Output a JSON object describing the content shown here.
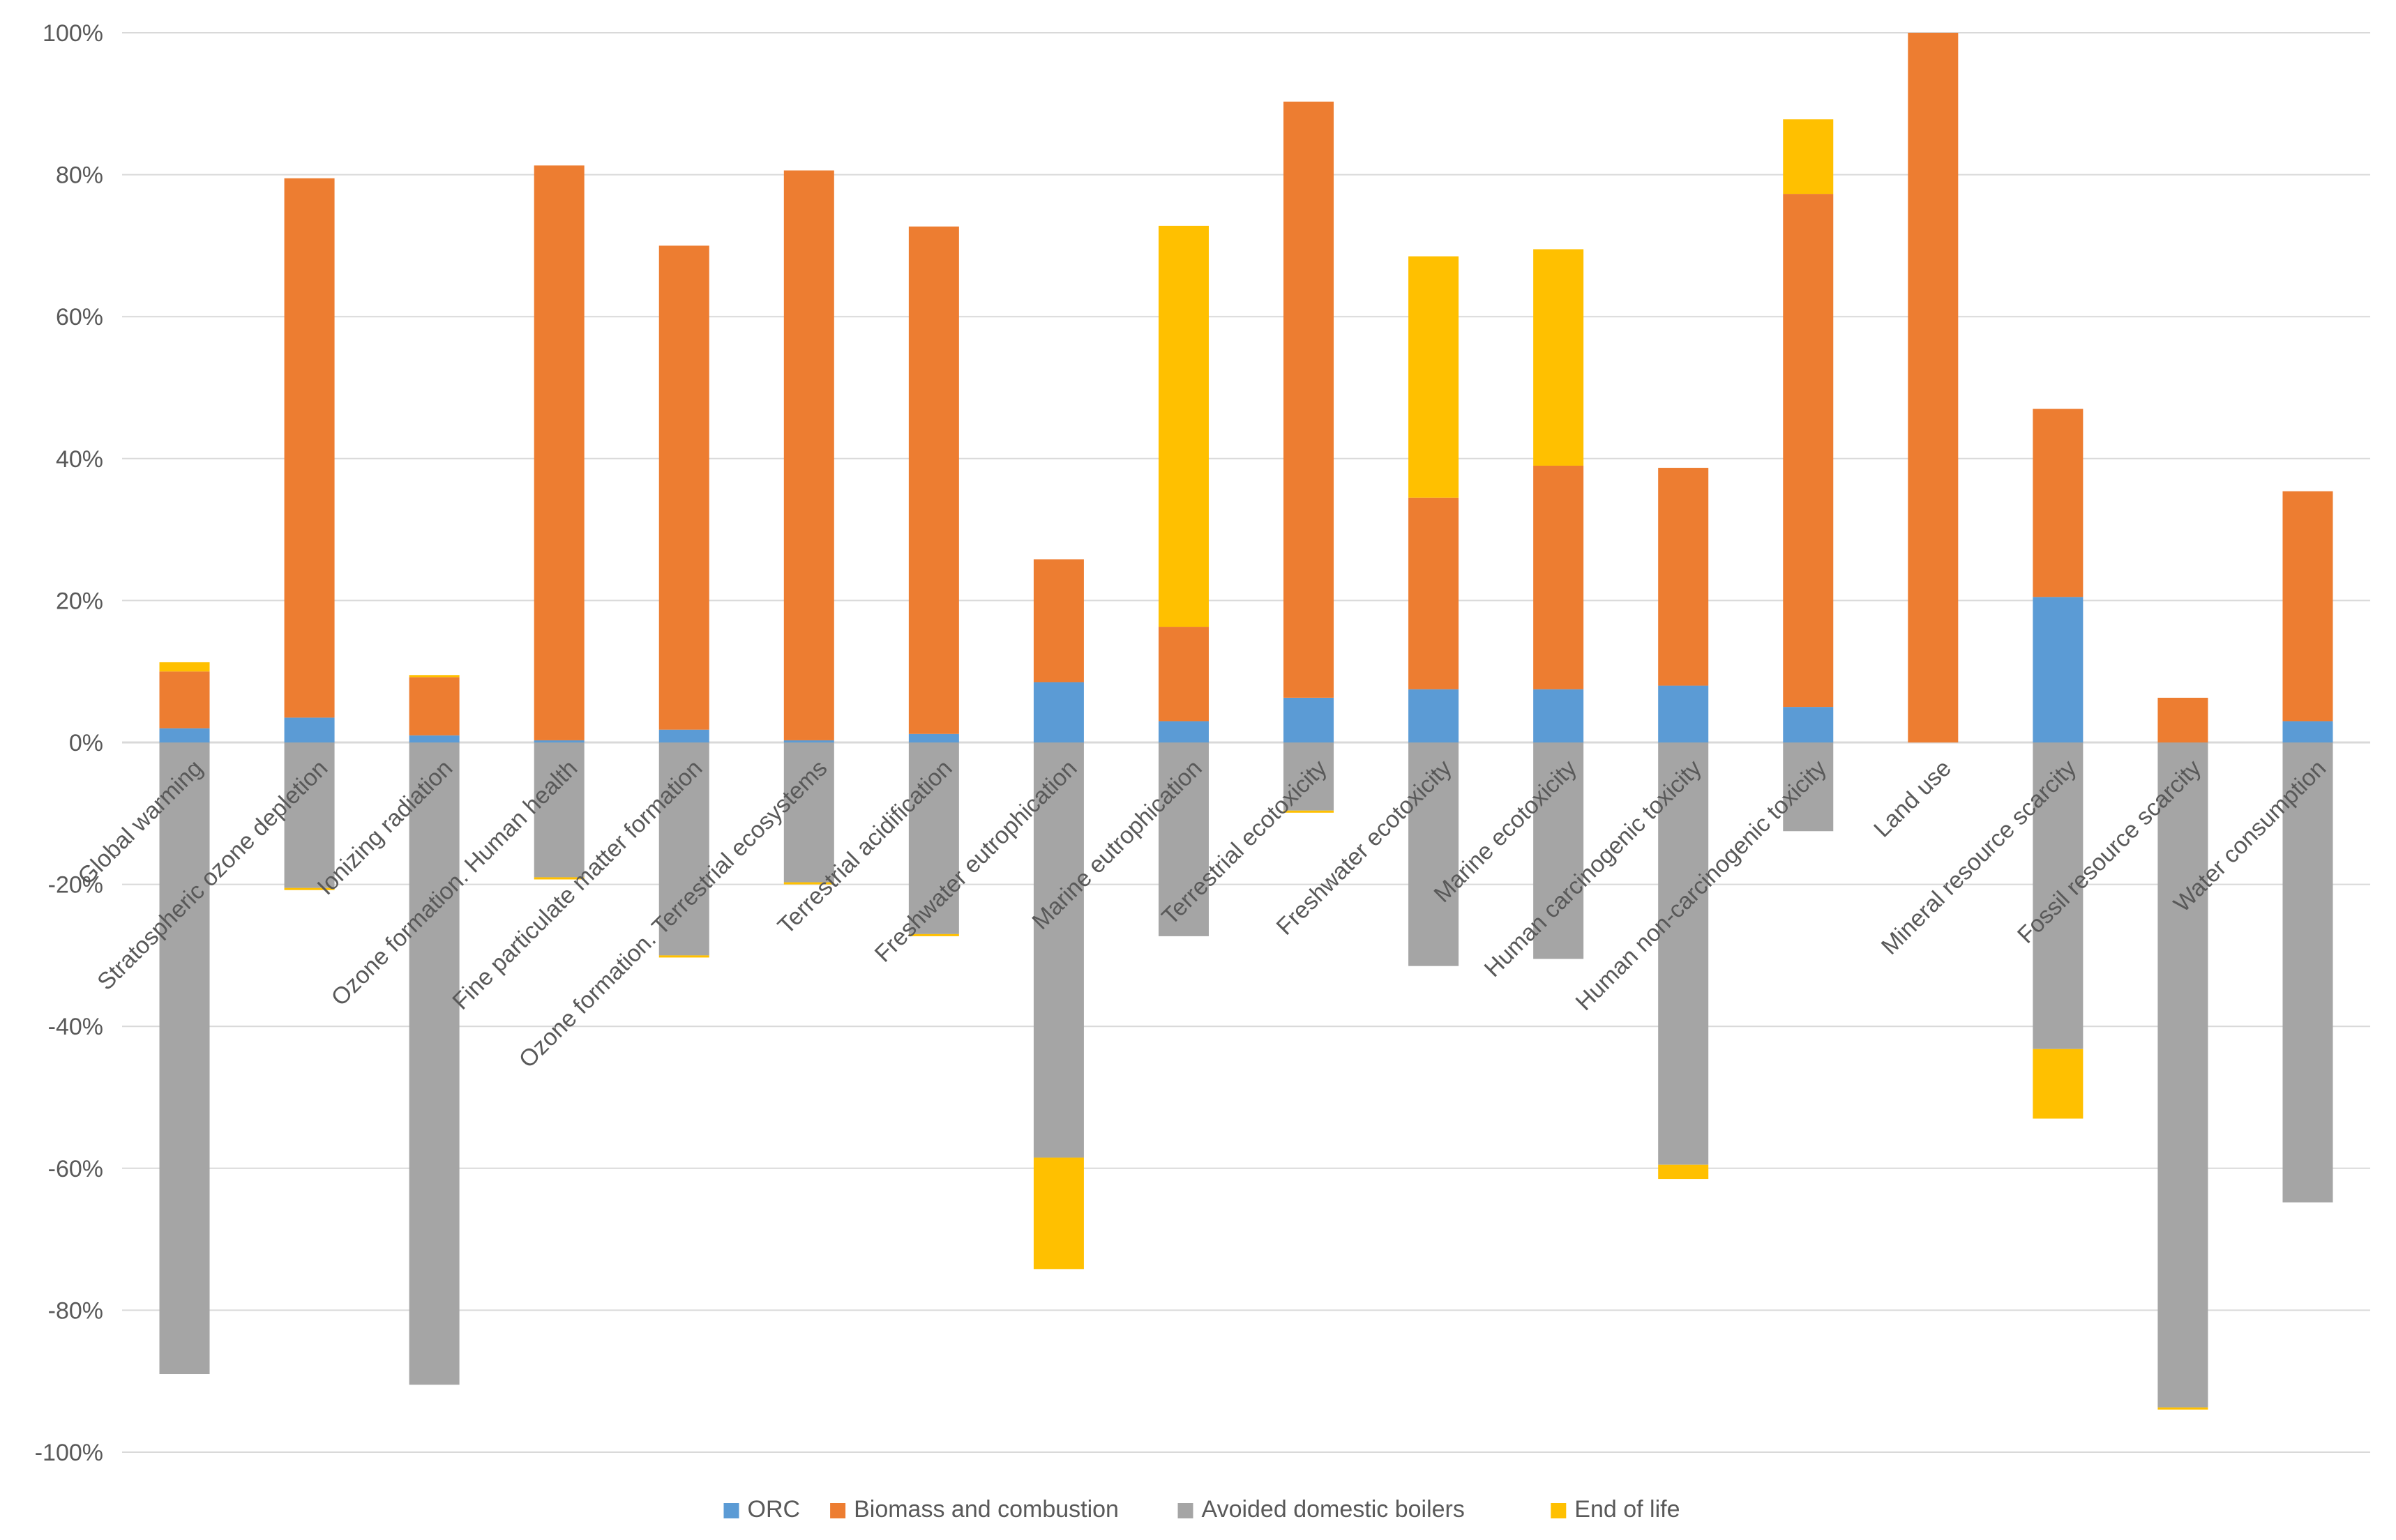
{
  "chart_data": {
    "type": "bar",
    "stacked": true,
    "title": "",
    "xlabel": "",
    "ylabel": "",
    "ylim": [
      -100,
      100
    ],
    "yticks": [
      100,
      80,
      60,
      40,
      20,
      0,
      -20,
      -40,
      -60,
      -80,
      -100
    ],
    "ytick_labels": [
      "100%",
      "80%",
      "60%",
      "40%",
      "20%",
      "0%",
      "-20%",
      "-40%",
      "-60%",
      "-80%",
      "-100%"
    ],
    "grid": true,
    "legend_position": "bottom",
    "categories": [
      "Global warming",
      "Stratospheric ozone depletion",
      "Ionizing radiation",
      "Ozone formation. Human health",
      "Fine particulate matter formation",
      "Ozone formation. Terrestrial ecosystems",
      "Terrestrial acidification",
      "Freshwater eutrophication",
      "Marine eutrophication",
      "Terrestrial ecotoxicity",
      "Freshwater ecotoxicity",
      "Marine ecotoxicity",
      "Human carcinogenic toxicity",
      "Human non-carcinogenic toxicity",
      "Land use",
      "Mineral resource scarcity",
      "Fossil resource scarcity",
      "Water consumption"
    ],
    "series": [
      {
        "name": "ORC",
        "color": "#5b9bd5",
        "values": [
          2,
          3.5,
          1,
          0.3,
          1.8,
          0.3,
          1.2,
          8.5,
          3,
          6.3,
          7.5,
          7.5,
          8,
          5,
          0,
          20.5,
          0,
          3
        ]
      },
      {
        "name": "Biomass and combustion",
        "color": "#ed7d31",
        "values": [
          8,
          76,
          8.2,
          81,
          68.2,
          80.3,
          71.5,
          17.3,
          13.3,
          84,
          27,
          31.5,
          30.7,
          72.3,
          100,
          26.5,
          6.3,
          32.4
        ]
      },
      {
        "name": "Avoided domestic boilers",
        "color": "#a5a5a5",
        "values": [
          -89,
          -20.5,
          -90.5,
          -19,
          -30,
          -19.7,
          -27,
          -58.5,
          -27.3,
          -9.6,
          -31.5,
          -30.5,
          -59.5,
          -12.5,
          0,
          -43.2,
          -93.7,
          -64.8
        ]
      },
      {
        "name": "End of life",
        "color": "#ffc000",
        "values": [
          1.3,
          -0.3,
          0.3,
          -0.3,
          -0.3,
          -0.3,
          -0.3,
          -15.7,
          56.5,
          -0.3,
          34,
          30.5,
          -2,
          10.5,
          0,
          -9.8,
          -0.3,
          0
        ]
      }
    ]
  }
}
